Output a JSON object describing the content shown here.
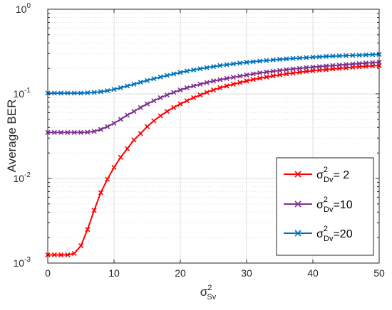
{
  "chart_data": {
    "type": "line",
    "xlabel": "σ",
    "xlabel_sup": "2",
    "xlabel_sub": "Sv",
    "ylabel": "Average BER",
    "xlim": [
      0,
      50
    ],
    "ylim": [
      0.001,
      1
    ],
    "yscale": "log",
    "grid": true,
    "minor_grid": true,
    "legend_position": "lower-right",
    "x_ticks": [
      "0",
      "10",
      "20",
      "30",
      "40",
      "50"
    ],
    "y_ticks": [
      {
        "value": 0.001,
        "base": "10",
        "exp": "-3"
      },
      {
        "value": 0.01,
        "base": "10",
        "exp": "-2"
      },
      {
        "value": 0.1,
        "base": "10",
        "exp": "-1"
      },
      {
        "value": 1,
        "base": "10",
        "exp": "0"
      }
    ],
    "x": [
      0,
      1,
      2,
      3,
      4,
      5,
      6,
      7,
      8,
      9,
      10,
      11,
      12,
      13,
      14,
      15,
      16,
      17,
      18,
      19,
      20,
      21,
      22,
      23,
      24,
      25,
      26,
      27,
      28,
      29,
      30,
      31,
      32,
      33,
      34,
      35,
      36,
      37,
      38,
      39,
      40,
      41,
      42,
      43,
      44,
      45,
      46,
      47,
      48,
      49,
      50
    ],
    "series": [
      {
        "name_base": "σ",
        "name_sup": "2",
        "name_sub": "Dv",
        "name_value": "= 2",
        "color": "#ff0000",
        "values": [
          0.00125,
          0.00125,
          0.00125,
          0.00125,
          0.0013,
          0.0016,
          0.0025,
          0.0042,
          0.0068,
          0.0098,
          0.0135,
          0.0178,
          0.0225,
          0.0285,
          0.034,
          0.041,
          0.048,
          0.055,
          0.062,
          0.069,
          0.076,
          0.083,
          0.09,
          0.097,
          0.104,
          0.111,
          0.118,
          0.124,
          0.13,
          0.136,
          0.142,
          0.148,
          0.153,
          0.158,
          0.163,
          0.168,
          0.172,
          0.176,
          0.18,
          0.184,
          0.188,
          0.191,
          0.194,
          0.197,
          0.2,
          0.203,
          0.206,
          0.209,
          0.212,
          0.214,
          0.216
        ]
      },
      {
        "name_base": "σ",
        "name_sup": "2",
        "name_sub": "Dv",
        "name_value": "=10",
        "color": "#7e2f8e",
        "values": [
          0.035,
          0.035,
          0.035,
          0.035,
          0.035,
          0.035,
          0.0352,
          0.036,
          0.038,
          0.041,
          0.045,
          0.05,
          0.056,
          0.062,
          0.069,
          0.076,
          0.083,
          0.09,
          0.097,
          0.104,
          0.111,
          0.118,
          0.124,
          0.13,
          0.136,
          0.142,
          0.147,
          0.152,
          0.157,
          0.162,
          0.167,
          0.172,
          0.177,
          0.181,
          0.185,
          0.189,
          0.193,
          0.197,
          0.2,
          0.204,
          0.207,
          0.21,
          0.213,
          0.216,
          0.219,
          0.222,
          0.225,
          0.228,
          0.231,
          0.234,
          0.237
        ]
      },
      {
        "name_base": "σ",
        "name_sup": "2",
        "name_sub": "Dv",
        "name_value": "=20",
        "color": "#0072bd",
        "values": [
          0.102,
          0.102,
          0.102,
          0.102,
          0.102,
          0.102,
          0.103,
          0.104,
          0.106,
          0.109,
          0.113,
          0.118,
          0.124,
          0.13,
          0.137,
          0.144,
          0.151,
          0.158,
          0.165,
          0.172,
          0.179,
          0.186,
          0.192,
          0.198,
          0.204,
          0.21,
          0.216,
          0.221,
          0.226,
          0.231,
          0.236,
          0.24,
          0.244,
          0.248,
          0.252,
          0.256,
          0.259,
          0.262,
          0.265,
          0.268,
          0.271,
          0.274,
          0.277,
          0.279,
          0.281,
          0.283,
          0.285,
          0.287,
          0.289,
          0.291,
          0.293
        ]
      }
    ]
  }
}
